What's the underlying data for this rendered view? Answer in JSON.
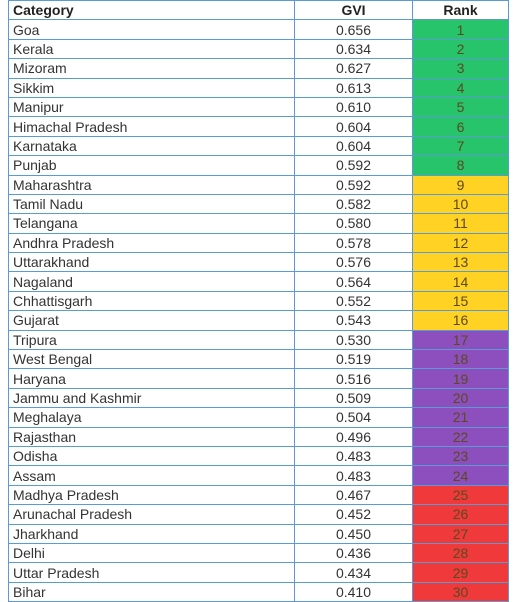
{
  "table": {
    "header": [
      "Category",
      "GVI",
      "Rank"
    ],
    "rows": [
      {
        "category": "Goa",
        "gvi": "0.656",
        "rank": 1,
        "color": "#27c46b"
      },
      {
        "category": "Kerala",
        "gvi": "0.634",
        "rank": 2,
        "color": "#27c46b"
      },
      {
        "category": "Mizoram",
        "gvi": "0.627",
        "rank": 3,
        "color": "#27c46b"
      },
      {
        "category": "Sikkim",
        "gvi": "0.613",
        "rank": 4,
        "color": "#27c46b"
      },
      {
        "category": "Manipur",
        "gvi": "0.610",
        "rank": 5,
        "color": "#27c46b"
      },
      {
        "category": "Himachal Pradesh",
        "gvi": "0.604",
        "rank": 6,
        "color": "#27c46b"
      },
      {
        "category": "Karnataka",
        "gvi": "0.604",
        "rank": 7,
        "color": "#27c46b"
      },
      {
        "category": "Punjab",
        "gvi": "0.592",
        "rank": 8,
        "color": "#27c46b"
      },
      {
        "category": "Maharashtra",
        "gvi": "0.592",
        "rank": 9,
        "color": "#ffd223"
      },
      {
        "category": "Tamil Nadu",
        "gvi": "0.582",
        "rank": 10,
        "color": "#ffd223"
      },
      {
        "category": "Telangana",
        "gvi": "0.580",
        "rank": 11,
        "color": "#ffd223"
      },
      {
        "category": "Andhra Pradesh",
        "gvi": "0.578",
        "rank": 12,
        "color": "#ffd223"
      },
      {
        "category": "Uttarakhand",
        "gvi": "0.576",
        "rank": 13,
        "color": "#ffd223"
      },
      {
        "category": "Nagaland",
        "gvi": "0.564",
        "rank": 14,
        "color": "#ffd223"
      },
      {
        "category": "Chhattisgarh",
        "gvi": "0.552",
        "rank": 15,
        "color": "#ffd223"
      },
      {
        "category": "Gujarat",
        "gvi": "0.543",
        "rank": 16,
        "color": "#ffd223"
      },
      {
        "category": "Tripura",
        "gvi": "0.530",
        "rank": 17,
        "color": "#8d4fbd"
      },
      {
        "category": "West Bengal",
        "gvi": "0.519",
        "rank": 18,
        "color": "#8d4fbd"
      },
      {
        "category": "Haryana",
        "gvi": "0.516",
        "rank": 19,
        "color": "#8d4fbd"
      },
      {
        "category": "Jammu and Kashmir",
        "gvi": "0.509",
        "rank": 20,
        "color": "#8d4fbd"
      },
      {
        "category": "Meghalaya",
        "gvi": "0.504",
        "rank": 21,
        "color": "#8d4fbd"
      },
      {
        "category": "Rajasthan",
        "gvi": "0.496",
        "rank": 22,
        "color": "#8d4fbd"
      },
      {
        "category": "Odisha",
        "gvi": "0.483",
        "rank": 23,
        "color": "#8d4fbd"
      },
      {
        "category": "Assam",
        "gvi": "0.483",
        "rank": 24,
        "color": "#8d4fbd"
      },
      {
        "category": "Madhya Pradesh",
        "gvi": "0.467",
        "rank": 25,
        "color": "#f0393a"
      },
      {
        "category": "Arunachal Pradesh",
        "gvi": "0.452",
        "rank": 26,
        "color": "#f0393a"
      },
      {
        "category": "Jharkhand",
        "gvi": "0.450",
        "rank": 27,
        "color": "#f0393a"
      },
      {
        "category": "Delhi",
        "gvi": "0.436",
        "rank": 28,
        "color": "#f0393a"
      },
      {
        "category": "Uttar Pradesh",
        "gvi": "0.434",
        "rank": 29,
        "color": "#f0393a"
      },
      {
        "category": "Bihar",
        "gvi": "0.410",
        "rank": 30,
        "color": "#f0393a"
      }
    ]
  }
}
